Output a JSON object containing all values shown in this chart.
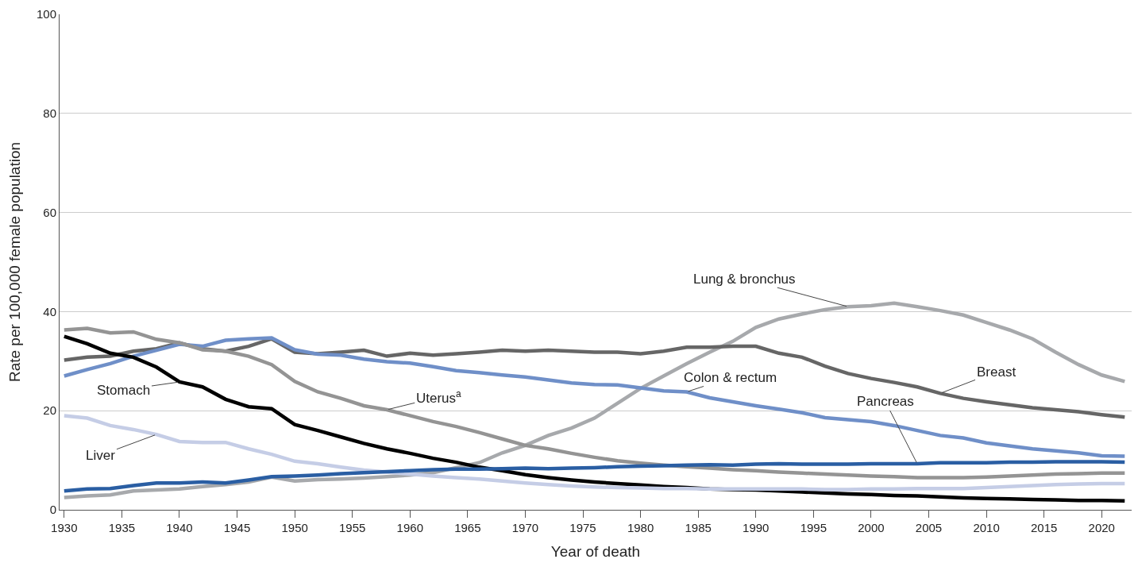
{
  "chart_data": {
    "type": "line",
    "xlabel": "Year of death",
    "ylabel": "Rate per 100,000 female population",
    "x": [
      1930,
      1932,
      1934,
      1936,
      1938,
      1940,
      1942,
      1944,
      1946,
      1948,
      1950,
      1952,
      1954,
      1956,
      1958,
      1960,
      1962,
      1964,
      1966,
      1968,
      1970,
      1972,
      1974,
      1976,
      1978,
      1980,
      1982,
      1984,
      1986,
      1988,
      1990,
      1992,
      1994,
      1996,
      1998,
      2000,
      2002,
      2004,
      2006,
      2008,
      2010,
      2012,
      2014,
      2016,
      2018,
      2020,
      2022
    ],
    "series": [
      {
        "name": "Lung & bronchus",
        "color": "#a7a9ac",
        "values": [
          2.5,
          2.8,
          3.0,
          3.8,
          4.0,
          4.2,
          4.7,
          5.1,
          5.6,
          6.6,
          5.8,
          6.1,
          6.2,
          6.4,
          6.7,
          7.0,
          7.5,
          8.5,
          9.5,
          11.5,
          13.0,
          15.0,
          16.5,
          18.5,
          21.5,
          24.5,
          27.0,
          29.5,
          31.8,
          34.0,
          36.8,
          38.5,
          39.5,
          40.4,
          41.0,
          41.2,
          41.7,
          41.0,
          40.2,
          39.3,
          37.8,
          36.3,
          34.5,
          31.8,
          29.3,
          27.2,
          25.9
        ]
      },
      {
        "name": "Breast",
        "color": "#666666",
        "values": [
          30.2,
          30.8,
          31.0,
          32.0,
          32.5,
          33.7,
          32.5,
          32.0,
          33.0,
          34.5,
          31.8,
          31.5,
          31.8,
          32.2,
          31.0,
          31.6,
          31.2,
          31.5,
          31.8,
          32.2,
          32.0,
          32.2,
          32.0,
          31.8,
          31.8,
          31.5,
          32.0,
          32.8,
          32.8,
          33.0,
          33.0,
          31.6,
          30.8,
          29.0,
          27.5,
          26.5,
          25.7,
          24.8,
          23.5,
          22.5,
          21.8,
          21.2,
          20.6,
          20.2,
          19.8,
          19.2,
          18.7
        ]
      },
      {
        "name": "Colon & rectum",
        "color": "#6f8fc8",
        "values": [
          27.0,
          28.3,
          29.5,
          31.0,
          32.2,
          33.4,
          33.0,
          34.2,
          34.5,
          34.7,
          32.3,
          31.4,
          31.2,
          30.4,
          29.9,
          29.6,
          28.9,
          28.1,
          27.7,
          27.2,
          26.8,
          26.2,
          25.6,
          25.3,
          25.2,
          24.6,
          24.0,
          23.8,
          22.6,
          21.8,
          21.0,
          20.3,
          19.6,
          18.6,
          18.2,
          17.8,
          17.0,
          16.0,
          15.0,
          14.5,
          13.5,
          12.9,
          12.3,
          11.9,
          11.5,
          10.9,
          10.8
        ]
      },
      {
        "name": "Uterus$^{a}$",
        "color": "#949494",
        "values": [
          36.3,
          36.6,
          35.7,
          35.9,
          34.4,
          33.7,
          32.3,
          32.0,
          31.0,
          29.3,
          25.9,
          23.8,
          22.5,
          21.0,
          20.2,
          19.0,
          17.8,
          16.8,
          15.6,
          14.3,
          13.0,
          12.3,
          11.4,
          10.6,
          9.9,
          9.4,
          9.0,
          8.7,
          8.4,
          8.1,
          7.9,
          7.6,
          7.4,
          7.2,
          7.0,
          6.8,
          6.7,
          6.5,
          6.5,
          6.5,
          6.6,
          6.8,
          7.0,
          7.2,
          7.3,
          7.4,
          7.4
        ]
      },
      {
        "name": "Stomach",
        "color": "#000000",
        "values": [
          35.0,
          33.5,
          31.6,
          30.8,
          28.8,
          25.8,
          24.8,
          22.3,
          20.8,
          20.4,
          17.2,
          16.0,
          14.7,
          13.4,
          12.3,
          11.4,
          10.4,
          9.6,
          8.6,
          7.9,
          7.1,
          6.5,
          6.0,
          5.6,
          5.3,
          5.0,
          4.7,
          4.5,
          4.2,
          4.1,
          4.0,
          3.8,
          3.6,
          3.4,
          3.2,
          3.1,
          2.9,
          2.8,
          2.6,
          2.4,
          2.3,
          2.2,
          2.1,
          2.0,
          1.9,
          1.9,
          1.8
        ]
      },
      {
        "name": "Liver",
        "color": "#c5cde6",
        "values": [
          19.0,
          18.5,
          17.0,
          16.2,
          15.2,
          13.8,
          13.6,
          13.6,
          12.3,
          11.2,
          9.8,
          9.3,
          8.6,
          8.0,
          7.6,
          7.2,
          6.8,
          6.5,
          6.2,
          5.8,
          5.4,
          5.1,
          4.8,
          4.6,
          4.5,
          4.4,
          4.3,
          4.3,
          4.2,
          4.2,
          4.2,
          4.2,
          4.2,
          4.1,
          4.1,
          4.2,
          4.2,
          4.3,
          4.3,
          4.3,
          4.5,
          4.7,
          4.9,
          5.1,
          5.2,
          5.3,
          5.3
        ]
      },
      {
        "name": "Pancreas",
        "color": "#2a5ea3",
        "values": [
          3.8,
          4.2,
          4.3,
          4.9,
          5.4,
          5.4,
          5.6,
          5.4,
          6.0,
          6.7,
          6.8,
          7.0,
          7.3,
          7.5,
          7.7,
          7.9,
          8.1,
          8.2,
          8.2,
          8.3,
          8.4,
          8.3,
          8.4,
          8.5,
          8.7,
          8.8,
          8.9,
          9.0,
          9.1,
          9.0,
          9.2,
          9.3,
          9.2,
          9.2,
          9.2,
          9.3,
          9.3,
          9.3,
          9.5,
          9.5,
          9.5,
          9.6,
          9.6,
          9.7,
          9.7,
          9.7,
          9.6
        ]
      }
    ],
    "xlim": [
      1929.6,
      2022.6
    ],
    "xticks": [
      1930,
      1935,
      1940,
      1945,
      1950,
      1955,
      1960,
      1965,
      1970,
      1975,
      1980,
      1985,
      1990,
      1995,
      2000,
      2005,
      2010,
      2015,
      2020
    ],
    "ylim": [
      0,
      100
    ],
    "yticks": [
      0,
      20,
      40,
      60,
      80,
      100
    ],
    "grid": "y",
    "legend": false,
    "marker": "none",
    "line_style": "solid"
  }
}
